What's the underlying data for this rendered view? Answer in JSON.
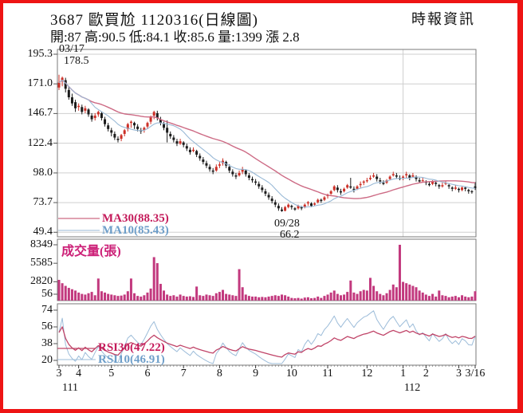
{
  "header": {
    "title": "3687 歐買尬 1120316(日線圖)",
    "source": "時報資訊",
    "quote": "開:87 高:90.5 低:84.1 收:85.6 量:1399 漲 2.8"
  },
  "annotations": {
    "peak_date": "03/17",
    "peak_price": "178.5",
    "trough_date": "09/28",
    "trough_price": "66.2"
  },
  "legends": {
    "ma30": "MA30(88.35)",
    "ma10": "MA10(85.43)",
    "volume": "成交量(張)",
    "rsi30": "RSI30(47.22)",
    "rsi10": "RSI10(46.91)"
  },
  "colors": {
    "border": "#ee1414",
    "up_candle": "#cc2f26",
    "down_candle": "#1b1b1b",
    "volume_bar": "#c2397e",
    "ma30_line": "#cd6b85",
    "ma10_line": "#99b9d6",
    "rsi30_line": "#c04468",
    "rsi10_line": "#9cbcd9",
    "grid": "#cfcfcf",
    "frame": "#7a7a7a",
    "text": "#111111"
  },
  "chart_data": {
    "type": "candlestick",
    "title": "3687 歐買尬 1120316(日線圖)",
    "panes": [
      "price",
      "volume",
      "rsi"
    ],
    "price_ticks": [
      "195.3",
      "171.0",
      "146.7",
      "122.4",
      "98.0",
      "73.7",
      "49.4"
    ],
    "volume_ticks": [
      "8349",
      "5585",
      "2820",
      "56"
    ],
    "rsi_ticks": [
      "74",
      "56",
      "38",
      "20"
    ],
    "price_range": [
      49.4,
      195.3
    ],
    "rsi_range": [
      20,
      74
    ],
    "volume_max": 8349,
    "month_ticks": [
      {
        "label": "3",
        "i": 0
      },
      {
        "label": "4",
        "i": 6
      },
      {
        "label": "5",
        "i": 16
      },
      {
        "label": "6",
        "i": 27
      },
      {
        "label": "7",
        "i": 38
      },
      {
        "label": "8",
        "i": 49
      },
      {
        "label": "9",
        "i": 60
      },
      {
        "label": "10",
        "i": 71
      },
      {
        "label": "11",
        "i": 82
      },
      {
        "label": "12",
        "i": 94
      },
      {
        "label": "1",
        "i": 105
      },
      {
        "label": "2",
        "i": 112
      },
      {
        "label": "3",
        "i": 122
      },
      {
        "label": "3/16",
        "i": 127
      }
    ],
    "year_ticks": [
      {
        "label": "111",
        "i": 3.4
      },
      {
        "label": "112",
        "i": 107.8
      }
    ],
    "last_values": {
      "ma30": 88.35,
      "ma10": 85.43,
      "rsi30": 47.22,
      "rsi10": 46.91,
      "open": 87,
      "high": 90.5,
      "low": 84.1,
      "close": 85.6,
      "volume": 1399,
      "change": 2.8
    },
    "ohlc": [
      [
        168,
        178.5,
        166,
        172
      ],
      [
        173,
        177,
        169,
        176
      ],
      [
        174,
        176,
        164,
        167
      ],
      [
        166,
        169,
        158,
        160
      ],
      [
        160,
        163,
        153,
        155
      ],
      [
        156,
        158,
        148,
        151
      ],
      [
        152,
        155,
        149,
        153
      ],
      [
        152,
        154,
        146,
        148
      ],
      [
        149,
        153,
        147,
        151
      ],
      [
        150,
        151,
        144,
        146
      ],
      [
        145,
        147,
        140,
        142
      ],
      [
        143,
        147,
        141,
        145
      ],
      [
        146,
        149,
        144,
        148
      ],
      [
        147,
        148,
        141,
        143
      ],
      [
        142,
        144,
        136,
        138
      ],
      [
        137,
        139,
        132,
        134
      ],
      [
        133,
        135,
        128,
        131
      ],
      [
        130,
        132,
        125,
        127
      ],
      [
        126,
        128,
        123,
        125
      ],
      [
        126,
        130,
        124,
        129
      ],
      [
        130,
        134,
        128,
        133
      ],
      [
        134,
        139,
        132,
        138
      ],
      [
        139,
        141,
        135,
        140
      ],
      [
        139,
        140,
        134,
        137
      ],
      [
        136,
        138,
        132,
        134
      ],
      [
        133,
        135,
        130,
        132
      ],
      [
        133,
        136,
        131,
        135
      ],
      [
        136,
        140,
        134,
        139
      ],
      [
        140,
        145,
        138,
        144
      ],
      [
        145,
        149,
        142,
        148
      ],
      [
        147,
        149,
        141,
        143
      ],
      [
        142,
        144,
        137,
        139
      ],
      [
        138,
        140,
        133,
        135
      ],
      [
        135,
        141,
        123,
        131
      ],
      [
        130,
        132,
        126,
        128
      ],
      [
        127,
        129,
        123,
        125
      ],
      [
        124,
        126,
        120,
        122
      ],
      [
        122,
        126,
        121,
        124
      ],
      [
        123,
        124,
        119,
        121
      ],
      [
        120,
        122,
        116,
        118
      ],
      [
        117,
        119,
        113,
        115
      ],
      [
        116,
        119,
        115,
        117
      ],
      [
        116,
        117,
        111,
        113
      ],
      [
        112,
        114,
        108,
        110
      ],
      [
        109,
        111,
        105,
        107
      ],
      [
        106,
        108,
        102,
        104
      ],
      [
        103,
        105,
        99,
        101
      ],
      [
        100,
        102,
        97,
        99
      ],
      [
        100,
        105,
        99,
        103
      ],
      [
        104,
        107,
        102,
        105
      ],
      [
        106,
        110,
        104,
        108
      ],
      [
        107,
        108,
        102,
        104
      ],
      [
        103,
        105,
        98,
        100
      ],
      [
        99,
        101,
        95,
        97
      ],
      [
        96,
        98,
        93,
        95
      ],
      [
        96,
        100,
        95,
        98
      ],
      [
        99,
        103,
        97,
        101
      ],
      [
        100,
        101,
        95,
        97
      ],
      [
        96,
        98,
        92,
        94
      ],
      [
        93,
        95,
        90,
        92
      ],
      [
        91,
        93,
        88,
        90
      ],
      [
        89,
        91,
        85,
        87
      ],
      [
        86,
        88,
        82,
        84
      ],
      [
        83,
        85,
        79,
        81
      ],
      [
        80,
        82,
        76,
        78
      ],
      [
        77,
        79,
        73,
        75
      ],
      [
        74,
        76,
        70,
        72
      ],
      [
        71,
        73,
        67,
        69
      ],
      [
        68,
        70,
        66.2,
        66.8
      ],
      [
        67,
        71,
        66.5,
        70
      ],
      [
        70,
        73,
        69,
        72
      ],
      [
        71,
        72,
        68,
        70
      ],
      [
        69,
        70,
        67,
        68
      ],
      [
        69,
        72,
        68,
        71
      ],
      [
        70,
        71,
        67.5,
        69
      ],
      [
        70,
        73,
        69,
        72
      ],
      [
        73,
        75,
        71,
        74
      ],
      [
        73,
        74,
        70,
        71
      ],
      [
        72,
        74,
        71,
        73
      ],
      [
        74,
        77,
        73,
        76
      ],
      [
        76,
        77,
        73.5,
        75
      ],
      [
        76,
        79,
        75,
        78
      ],
      [
        79,
        81,
        77,
        80
      ],
      [
        81,
        84,
        80,
        83
      ],
      [
        84,
        88,
        83,
        87
      ],
      [
        86,
        88,
        82,
        84
      ],
      [
        83,
        85,
        80,
        82
      ],
      [
        83,
        86,
        82,
        85
      ],
      [
        86,
        89,
        85,
        88
      ],
      [
        87,
        94,
        85,
        86
      ],
      [
        85,
        87,
        82,
        84
      ],
      [
        85,
        88,
        84,
        87
      ],
      [
        88,
        91,
        86,
        89
      ],
      [
        90,
        92,
        88,
        91
      ],
      [
        92,
        94,
        90,
        92
      ],
      [
        93,
        96,
        92,
        94
      ],
      [
        95,
        98,
        94,
        96
      ],
      [
        95,
        97,
        91,
        93
      ],
      [
        92,
        94,
        89,
        91
      ],
      [
        90,
        92,
        88,
        89
      ],
      [
        90,
        93,
        89,
        92
      ],
      [
        93,
        96,
        92,
        95
      ],
      [
        96,
        99,
        95,
        97
      ],
      [
        96,
        98,
        93,
        95
      ],
      [
        94,
        96,
        92,
        93
      ],
      [
        94,
        96,
        92,
        95
      ],
      [
        96,
        99,
        94,
        97
      ],
      [
        96,
        97,
        92,
        94
      ],
      [
        95,
        98,
        94,
        96
      ],
      [
        95,
        96,
        91,
        93
      ],
      [
        92,
        94,
        90,
        91
      ],
      [
        92,
        94,
        91,
        92
      ],
      [
        91,
        92,
        88,
        90
      ],
      [
        89,
        91,
        87,
        88
      ],
      [
        89,
        92,
        88,
        91
      ],
      [
        90,
        91,
        87,
        89
      ],
      [
        88,
        89,
        85,
        87
      ],
      [
        87,
        90,
        86,
        88
      ],
      [
        89,
        91,
        88,
        90
      ],
      [
        88,
        89,
        85,
        87
      ],
      [
        86,
        87,
        83,
        85
      ],
      [
        85,
        88,
        84,
        86
      ],
      [
        85,
        86,
        82,
        84
      ],
      [
        84,
        87,
        83,
        86
      ],
      [
        86,
        87,
        83,
        85
      ],
      [
        84,
        85,
        81,
        83
      ],
      [
        83,
        84,
        81,
        82.8
      ],
      [
        87,
        90.5,
        84.1,
        85.6
      ]
    ],
    "volume": [
      3100,
      2600,
      2200,
      1900,
      1700,
      1500,
      1200,
      1000,
      900,
      1100,
      1300,
      800,
      3300,
      1400,
      1200,
      1000,
      900,
      800,
      700,
      750,
      900,
      1400,
      3300,
      1100,
      700,
      600,
      800,
      1200,
      1800,
      6500,
      5600,
      2500,
      1500,
      900,
      700,
      800,
      600,
      900,
      700,
      600,
      650,
      550,
      2100,
      800,
      700,
      900,
      800,
      700,
      1100,
      1300,
      1600,
      1000,
      900,
      800,
      700,
      4700,
      2000,
      900,
      700,
      600,
      600,
      500,
      550,
      500,
      600,
      700,
      800,
      700,
      900,
      800,
      600,
      400,
      350,
      400,
      300,
      450,
      500,
      350,
      400,
      600,
      400,
      700,
      900,
      1200,
      1500,
      1000,
      800,
      900,
      1300,
      3000,
      1200,
      1000,
      1400,
      1600,
      1500,
      3400,
      2200,
      1400,
      1000,
      800,
      1100,
      1600,
      2400,
      2000,
      8349,
      2800,
      2600,
      2400,
      2200,
      2000,
      1500,
      1200,
      900,
      700,
      1000,
      600,
      1500,
      800,
      700,
      500,
      600,
      700,
      500,
      800,
      600,
      500,
      600,
      1399
    ]
  }
}
